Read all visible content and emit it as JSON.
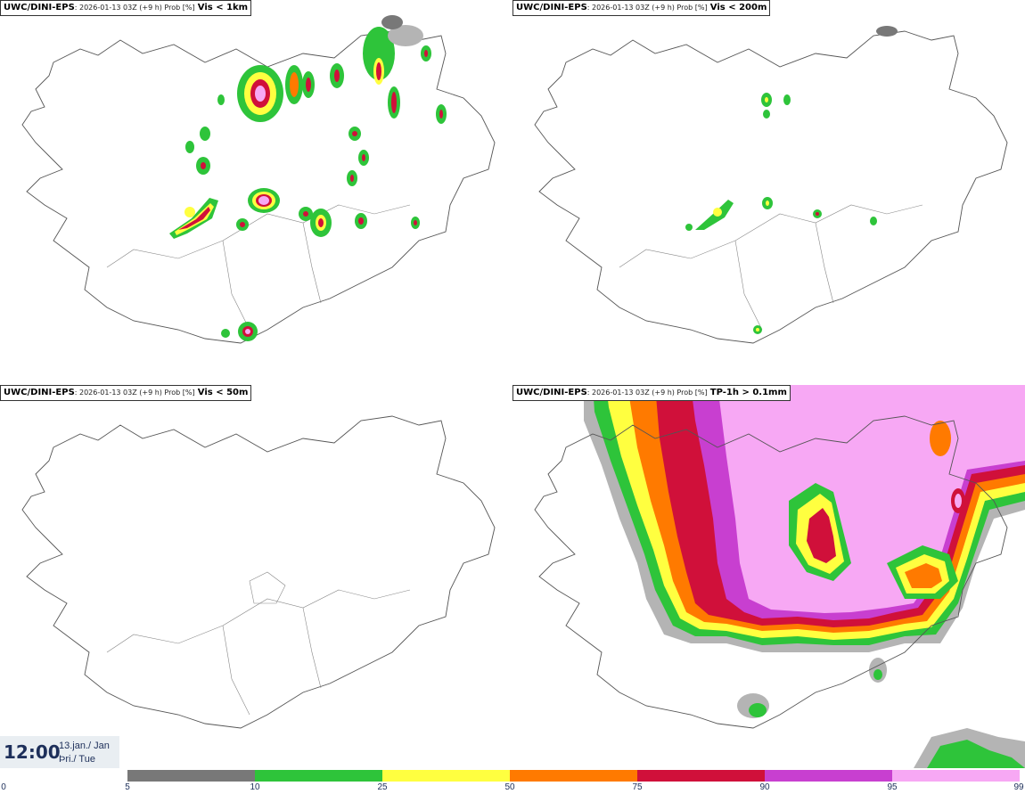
{
  "panels": [
    {
      "source": "UWC/DINI-EPS",
      "info": ": 2026-01-13 03Z (+9 h) Prob [%]",
      "variable": "Vis < 1km"
    },
    {
      "source": "UWC/DINI-EPS",
      "info": ": 2026-01-13 03Z (+9 h) Prob [%]",
      "variable": "Vis < 200m"
    },
    {
      "source": "UWC/DINI-EPS",
      "info": ": 2026-01-13 03Z (+9 h) Prob [%]",
      "variable": "Vis < 50m"
    },
    {
      "source": "UWC/DINI-EPS",
      "info": ": 2026-01-13 03Z (+9 h) Prob [%]",
      "variable": "TP-1h > 0.1mm"
    }
  ],
  "valid_time": {
    "time": "12:00",
    "date": "13.jan./ Jan",
    "weekday": "Þri./ Tue"
  },
  "colorbar": {
    "ticks": [
      "0",
      "5",
      "10",
      "25",
      "50",
      "75",
      "90",
      "95",
      "99"
    ],
    "colors": [
      "#ffffff",
      "#b4b4b4",
      "#787878",
      "#2ec43a",
      "#ffff40",
      "#ff7a00",
      "#d0103a",
      "#c83fd0",
      "#f7a8f4"
    ]
  }
}
